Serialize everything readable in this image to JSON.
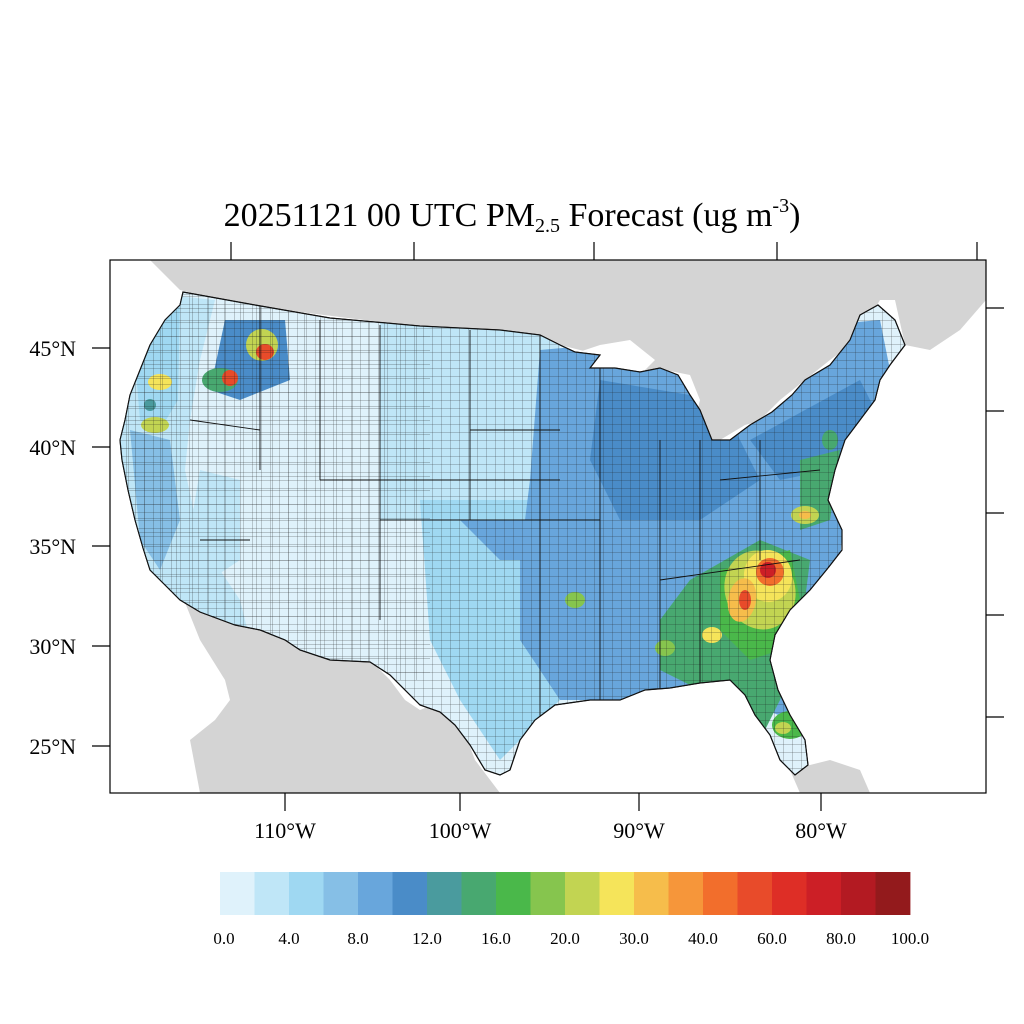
{
  "title": {
    "prefix": "20251121 00 UTC PM",
    "subscript": "2.5",
    "middle": " Forecast (ug m",
    "superscript": "-3",
    "suffix": ")"
  },
  "axes": {
    "latitude_labels": [
      "45°N",
      "40°N",
      "35°N",
      "30°N",
      "25°N"
    ],
    "longitude_labels": [
      "110°W",
      "100°W",
      "90°W",
      "80°W"
    ]
  },
  "colorbar": {
    "colors": [
      "#dff2fb",
      "#bfe6f7",
      "#9fd8f2",
      "#86bfe6",
      "#68a6dc",
      "#4a8cc8",
      "#4a9b9e",
      "#48a870",
      "#4ab84a",
      "#86c54e",
      "#c2d452",
      "#f5e45a",
      "#f6bd4b",
      "#f6963a",
      "#f26e2c",
      "#e84b2a",
      "#de2e26",
      "#cc1f26",
      "#b31a22",
      "#931a1c"
    ],
    "labels": [
      "0.0",
      "4.0",
      "8.0",
      "12.0",
      "16.0",
      "20.0",
      "30.0",
      "40.0",
      "60.0",
      "80.0",
      "100.0"
    ]
  },
  "colors": {
    "land_outside": "#d4d4d4",
    "water": "#ffffff",
    "county_border": "#111111"
  }
}
